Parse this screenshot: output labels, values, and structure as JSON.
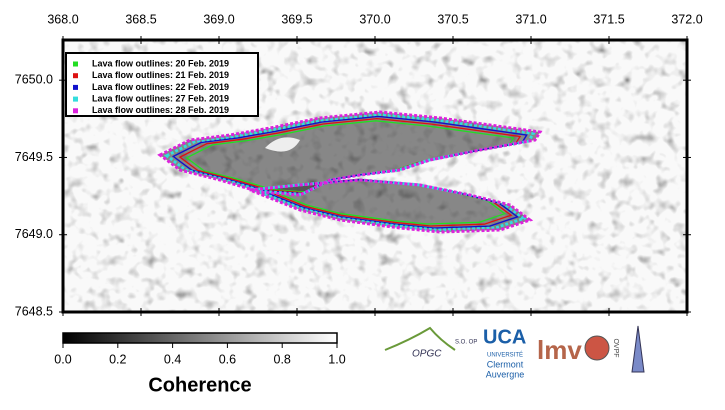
{
  "map": {
    "xlim": [
      368,
      372
    ],
    "ylim": [
      7648.5,
      7650.26
    ],
    "xticks": [
      {
        "value": 368,
        "label": "368.0"
      },
      {
        "value": 368.5,
        "label": "368.5"
      },
      {
        "value": 369,
        "label": "369.0"
      },
      {
        "value": 369.5,
        "label": "369.5"
      },
      {
        "value": 370,
        "label": "370.0"
      },
      {
        "value": 370.5,
        "label": "370.5"
      },
      {
        "value": 371,
        "label": "371.0"
      },
      {
        "value": 371.5,
        "label": "371.5"
      },
      {
        "value": 372,
        "label": "372.0"
      }
    ],
    "yticks": [
      {
        "value": 7648.5,
        "label": "7648.5"
      },
      {
        "value": 7649,
        "label": "7649.0"
      },
      {
        "value": 7649.5,
        "label": "7649.5"
      },
      {
        "value": 7650,
        "label": "7650.0"
      }
    ]
  },
  "legend": [
    {
      "name": "Lava flow outlines: 20 Feb. 2019",
      "color": "#22dd22"
    },
    {
      "name": "Lava flow outlines: 21 Feb. 2019",
      "color": "#dd1111"
    },
    {
      "name": "Lava flow outlines: 22 Feb. 2019",
      "color": "#1111cc"
    },
    {
      "name": "Lava flow outlines: 27 Feb. 2019",
      "color": "#33dddd"
    },
    {
      "name": "Lava flow outlines: 28 Feb. 2019",
      "color": "#dd22dd"
    }
  ],
  "colorbar": {
    "lim": [
      0,
      1
    ],
    "ticks": [
      {
        "value": 0,
        "label": "0.0"
      },
      {
        "value": 0.2,
        "label": "0.2"
      },
      {
        "value": 0.4,
        "label": "0.4"
      },
      {
        "value": 0.6,
        "label": "0.6"
      },
      {
        "value": 0.8,
        "label": "0.8"
      },
      {
        "value": 1,
        "label": "1.0"
      }
    ],
    "label": "Coherence"
  },
  "logos": {
    "opgc": "OPGC",
    "so": "S.O. OP",
    "uca": "UCA",
    "university": "UNIVERSITÉ",
    "clermont": "Clermont",
    "auvergne": "Auvergne",
    "lmv": "lmv",
    "ovpf": "OVPF"
  }
}
